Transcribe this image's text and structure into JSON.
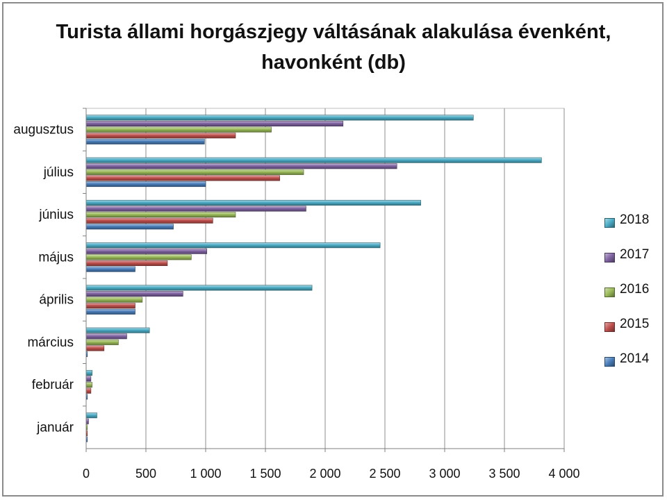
{
  "title": {
    "line1": "Turista állami horgászjegy váltásának alakulása évenként,",
    "line2": "havonként (db)"
  },
  "chart_data": {
    "type": "bar",
    "orientation": "horizontal",
    "title": "Turista állami horgászjegy váltásának alakulása évenként, havonként (db)",
    "categories": [
      "január",
      "február",
      "március",
      "április",
      "május",
      "június",
      "július",
      "augusztus"
    ],
    "series": [
      {
        "name": "2014",
        "color": "#4a7ebb",
        "values": [
          10,
          10,
          10,
          410,
          410,
          730,
          1000,
          990
        ]
      },
      {
        "name": "2015",
        "color": "#c0504d",
        "values": [
          10,
          40,
          150,
          410,
          680,
          1060,
          1620,
          1250
        ]
      },
      {
        "name": "2016",
        "color": "#9bbb59",
        "values": [
          10,
          50,
          270,
          470,
          880,
          1250,
          1820,
          1550
        ]
      },
      {
        "name": "2017",
        "color": "#8064a2",
        "values": [
          20,
          40,
          340,
          810,
          1010,
          1840,
          2600,
          2150
        ]
      },
      {
        "name": "2018",
        "color": "#4bacc6",
        "values": [
          90,
          50,
          530,
          1890,
          2460,
          2800,
          3810,
          3240
        ]
      }
    ],
    "xlim": [
      0,
      4000
    ],
    "xticks": [
      "0",
      "500",
      "1 000",
      "1 500",
      "2 000",
      "2 500",
      "3 000",
      "3 500",
      "4 000"
    ],
    "grid": true,
    "legend_position": "right"
  }
}
